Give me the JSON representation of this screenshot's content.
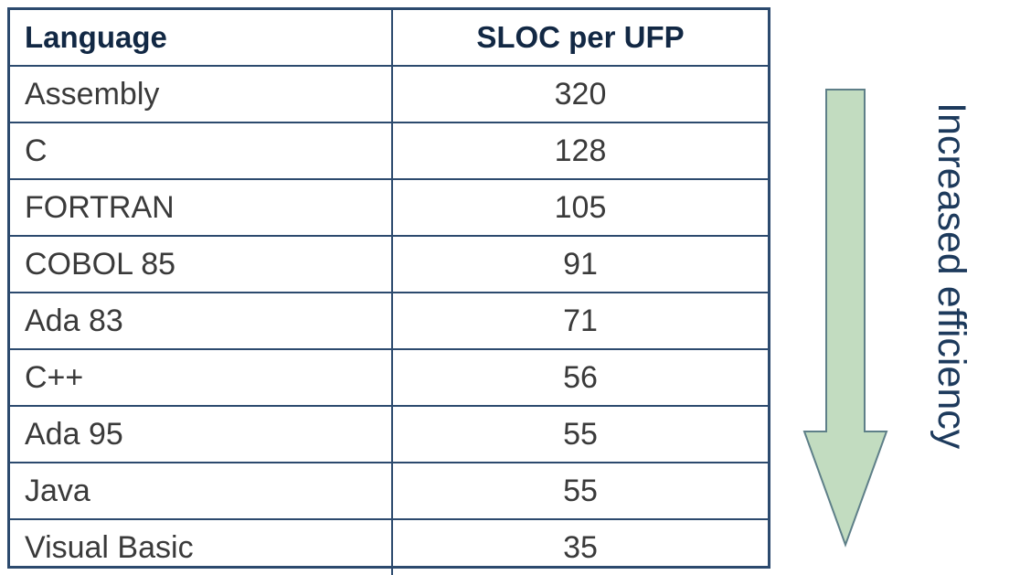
{
  "table": {
    "headers": [
      "Language",
      "SLOC per UFP"
    ],
    "rows": [
      {
        "language": "Assembly",
        "sloc_per_ufp": "320"
      },
      {
        "language": "C",
        "sloc_per_ufp": "128"
      },
      {
        "language": "FORTRAN",
        "sloc_per_ufp": "105"
      },
      {
        "language": "COBOL 85",
        "sloc_per_ufp": "91"
      },
      {
        "language": "Ada 83",
        "sloc_per_ufp": "71"
      },
      {
        "language": "C++",
        "sloc_per_ufp": "56"
      },
      {
        "language": "Ada 95",
        "sloc_per_ufp": "55"
      },
      {
        "language": "Java",
        "sloc_per_ufp": "55"
      },
      {
        "language": "Visual Basic",
        "sloc_per_ufp": "35"
      }
    ]
  },
  "arrow": {
    "label": "Increased efficiency",
    "direction": "down",
    "fill_color": "#c2dcc0",
    "stroke_color": "#5e7f88"
  },
  "colors": {
    "table_border": "#2c4a6e",
    "header_text": "#122844",
    "label_text": "#1d3a5c"
  }
}
